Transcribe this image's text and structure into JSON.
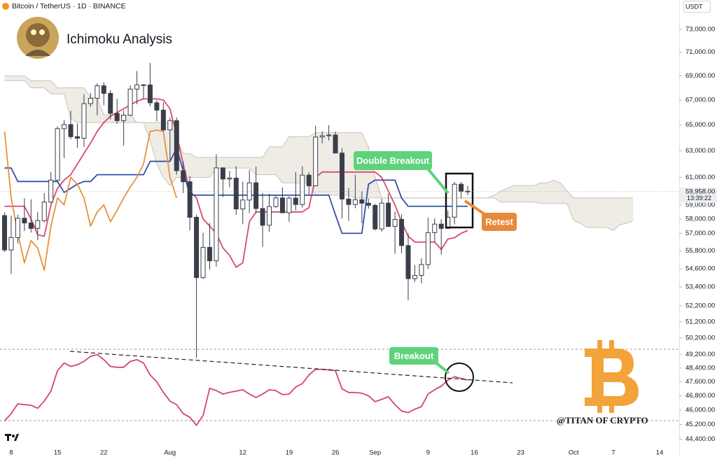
{
  "chart_data": {
    "type": "candlestick",
    "title": "Ichimoku Analysis",
    "symbol": "Bitcoin / TetherUS · 1D · BINANCE",
    "currency": "USDT",
    "watermark": "@TITAN OF CRYPTO",
    "log": true,
    "ylim": [
      44010,
      75650
    ],
    "yticks": [
      {
        "value": 73000,
        "label": "73,000.00"
      },
      {
        "value": 71000,
        "label": "71,000.00"
      },
      {
        "value": 69000,
        "label": "69,000.00"
      },
      {
        "value": 67000,
        "label": "67,000.00"
      },
      {
        "value": 65000,
        "label": "65,000.00"
      },
      {
        "value": 63000,
        "label": "63,000.00"
      },
      {
        "value": 61000,
        "label": "61,000.00"
      },
      {
        "value": 59000,
        "label": "59,000.00"
      },
      {
        "value": 58000,
        "label": "58,000.00"
      },
      {
        "value": 57000,
        "label": "57,000.00"
      },
      {
        "value": 55800,
        "label": "55,800.00"
      },
      {
        "value": 54600,
        "label": "54,600.00"
      },
      {
        "value": 53400,
        "label": "53,400.00"
      },
      {
        "value": 52200,
        "label": "52,200.00"
      },
      {
        "value": 51200,
        "label": "51,200.00"
      },
      {
        "value": 50200,
        "label": "50,200.00"
      },
      {
        "value": 49200,
        "label": "49,200.00"
      },
      {
        "value": 48400,
        "label": "48,400.00"
      },
      {
        "value": 47600,
        "label": "47,600.00"
      },
      {
        "value": 46800,
        "label": "46,800.00"
      },
      {
        "value": 46000,
        "label": "46,000.00"
      },
      {
        "value": 45200,
        "label": "45,200.00"
      },
      {
        "value": 44400,
        "label": "44,400.00"
      }
    ],
    "last_price": {
      "value": 59958,
      "label": "59,958.00"
    },
    "countdown": "13:39:22",
    "up_color": "#ffffff",
    "down_color": "#3a3e4a",
    "categories": [
      null,
      "8",
      null,
      null,
      null,
      null,
      null,
      null,
      "15",
      null,
      null,
      null,
      null,
      null,
      null,
      "22",
      null,
      null,
      null,
      null,
      null,
      null,
      null,
      null,
      null,
      "Aug",
      null,
      null,
      null,
      null,
      null,
      null,
      null,
      null,
      null,
      null,
      "12",
      null,
      null,
      null,
      null,
      null,
      null,
      "19",
      null,
      null,
      null,
      null,
      null,
      null,
      "26",
      null,
      null,
      null,
      null,
      null,
      "Sep",
      null,
      null,
      null,
      null,
      null,
      null,
      null,
      "9",
      null,
      null,
      null,
      null,
      null,
      null,
      "16",
      null,
      null,
      null,
      null,
      null,
      null,
      "23",
      null,
      null,
      null,
      null,
      null,
      null,
      null,
      "Oct",
      null,
      null,
      null,
      null,
      null,
      "7",
      null,
      null,
      null,
      null,
      null,
      null,
      "14",
      null,
      null
    ],
    "open": [
      58240,
      55860,
      56710,
      58050,
      57720,
      57340,
      57890,
      59200,
      60800,
      64720,
      65040,
      64090,
      63970,
      66710,
      67150,
      68170,
      67550,
      65930,
      65350,
      65780,
      67900,
      68250,
      68240,
      66780,
      66190,
      64620,
      65350,
      61500,
      60680,
      58120,
      54020,
      56040,
      55130,
      61710,
      60880,
      60950,
      58710,
      59350,
      60600,
      58740,
      57560,
      58880,
      59500,
      58440,
      59490,
      59030,
      61170,
      60380,
      64060,
      64160,
      64220,
      62830,
      59420,
      59030,
      59370,
      59120,
      58970,
      57300,
      59130,
      57480,
      57970,
      56160,
      53950,
      54160,
      54880,
      57050,
      57640,
      57340,
      58130,
      60500,
      59990,
      null,
      null,
      null,
      null,
      null,
      null,
      null,
      null,
      null,
      null,
      null,
      null,
      null,
      null,
      null,
      null,
      null,
      null,
      null,
      null,
      null,
      null,
      null,
      null,
      null,
      null,
      null,
      null,
      null,
      null,
      null
    ],
    "high": [
      58450,
      58240,
      58300,
      59470,
      59400,
      58500,
      59850,
      61420,
      64900,
      65390,
      66130,
      65120,
      67490,
      67600,
      68380,
      68480,
      67810,
      67100,
      66160,
      68200,
      69400,
      68320,
      70080,
      66990,
      66810,
      65600,
      65600,
      62200,
      61100,
      58300,
      57040,
      57720,
      62740,
      61750,
      61470,
      61850,
      60700,
      61570,
      61800,
      59850,
      59800,
      59700,
      60260,
      59620,
      61400,
      61820,
      61400,
      64950,
      64520,
      65000,
      64480,
      63200,
      60230,
      61190,
      59990,
      59440,
      59070,
      59440,
      59810,
      58520,
      58330,
      56990,
      54850,
      55300,
      58090,
      58040,
      57990,
      58600,
      60670,
      60660,
      60380,
      null,
      null,
      null,
      null,
      null,
      null,
      null,
      null,
      null,
      null,
      null,
      null,
      null,
      null,
      null,
      null,
      null,
      null,
      null,
      null,
      null,
      null,
      null,
      null,
      null,
      null,
      null,
      null,
      null,
      null,
      null
    ],
    "low": [
      55720,
      54260,
      56300,
      57160,
      57050,
      56530,
      57760,
      59130,
      60650,
      62450,
      63900,
      63230,
      63300,
      66440,
      65790,
      66570,
      65440,
      65100,
      63400,
      65730,
      66660,
      67070,
      66500,
      65300,
      64500,
      62300,
      61200,
      59850,
      57200,
      49000,
      53940,
      54550,
      54740,
      59560,
      60280,
      58300,
      57640,
      58420,
      58420,
      56080,
      57100,
      58790,
      58400,
      57800,
      58600,
      58800,
      59700,
      60350,
      63580,
      63800,
      62800,
      58030,
      57860,
      58760,
      57700,
      58730,
      57200,
      57120,
      57420,
      55600,
      55650,
      52550,
      53740,
      53650,
      54590,
      56400,
      55550,
      57330,
      57630,
      59460,
      59700,
      null,
      null,
      null,
      null,
      null,
      null,
      null,
      null,
      null,
      null,
      null,
      null,
      null,
      null,
      null,
      null,
      null,
      null,
      null,
      null,
      null,
      null,
      null,
      null,
      null,
      null,
      null,
      null,
      null,
      null,
      null
    ],
    "close": [
      55860,
      56710,
      58050,
      57720,
      57340,
      57890,
      59200,
      60800,
      64720,
      65040,
      64090,
      63970,
      66710,
      67150,
      68170,
      67550,
      65930,
      65350,
      65780,
      67900,
      68250,
      68240,
      66780,
      66190,
      64620,
      65350,
      61500,
      60680,
      58120,
      54020,
      56040,
      55130,
      61710,
      60880,
      60950,
      58710,
      59350,
      60600,
      58740,
      57560,
      58880,
      59500,
      58440,
      59490,
      59030,
      61170,
      60380,
      64060,
      64160,
      64220,
      62830,
      59420,
      59030,
      59370,
      59120,
      58970,
      57300,
      59130,
      57480,
      57970,
      56160,
      53950,
      54160,
      54880,
      57050,
      57640,
      57340,
      58130,
      60500,
      59990,
      59958,
      null,
      null,
      null,
      null,
      null,
      null,
      null,
      null,
      null,
      null,
      null,
      null,
      null,
      null,
      null,
      null,
      null,
      null,
      null,
      null,
      null,
      null,
      null,
      null,
      null,
      null,
      null,
      null,
      null,
      null,
      null
    ],
    "cloud": {
      "color": "#e9e5dd",
      "upper": [
        69000,
        69000,
        69000,
        69000,
        68600,
        68600,
        68600,
        68600,
        68000,
        68000,
        68000,
        68000,
        68000,
        67200,
        67200,
        65800,
        65800,
        65800,
        65800,
        65800,
        65200,
        65200,
        65200,
        65200,
        65200,
        65200,
        64000,
        62800,
        62800,
        62500,
        62500,
        62500,
        62500,
        62500,
        62500,
        62500,
        62500,
        62500,
        62500,
        62500,
        63300,
        63300,
        63300,
        64100,
        64100,
        64100,
        64100,
        64400,
        64400,
        64400,
        64400,
        64400,
        64400,
        64400,
        64400,
        63300,
        61000,
        59500,
        59500,
        59500,
        59500,
        59500,
        59500,
        59500,
        59500,
        59500,
        59500,
        59500,
        59500,
        59500,
        59500,
        59500,
        59500,
        59500,
        59700,
        60000,
        60200,
        60400,
        60400,
        60400,
        60400,
        60600,
        60600,
        60800,
        60600,
        60000,
        59500,
        59500,
        59500,
        59500,
        59500,
        59500,
        59500,
        59500,
        59500,
        59500,
        null,
        null,
        null,
        null,
        null,
        null
      ],
      "lower": [
        68600,
        68600,
        68600,
        68600,
        68000,
        68000,
        68000,
        67500,
        67500,
        67500,
        65500,
        65200,
        65200,
        65200,
        65200,
        65200,
        65200,
        65200,
        65200,
        65200,
        65200,
        65200,
        63800,
        62000,
        61000,
        60400,
        61000,
        61000,
        61000,
        61000,
        61000,
        61000,
        61700,
        61700,
        61700,
        61700,
        61700,
        61700,
        61200,
        61200,
        61200,
        61200,
        60600,
        60600,
        60600,
        60600,
        60600,
        59700,
        59700,
        59700,
        59700,
        59700,
        59700,
        59500,
        59500,
        59500,
        59500,
        59500,
        59500,
        59500,
        59500,
        59500,
        59500,
        59500,
        59500,
        59500,
        59500,
        59500,
        59500,
        59500,
        59500,
        59500,
        59500,
        59500,
        59500,
        59200,
        59200,
        59200,
        59200,
        59200,
        59200,
        59100,
        59100,
        59100,
        59100,
        59100,
        57900,
        57700,
        57400,
        57400,
        57400,
        57400,
        57200,
        57600,
        57700,
        57900,
        null,
        null,
        null,
        null,
        null,
        null
      ]
    },
    "overlays": [
      {
        "color": "#d84a72",
        "values": [
          58900,
          58900,
          58900,
          58900,
          58000,
          56900,
          56800,
          59000,
          60200,
          60800,
          61200,
          62000,
          62800,
          63600,
          64500,
          65200,
          65700,
          66000,
          66300,
          66600,
          66900,
          67100,
          67100,
          67100,
          67000,
          66300,
          64200,
          62000,
          60000,
          59500,
          58000,
          57500,
          57000,
          56000,
          55500,
          54700,
          55000,
          57800,
          58500,
          58500,
          58500,
          58500,
          58500,
          58500,
          58500,
          58500,
          58800,
          61000,
          61400,
          61400,
          61400,
          61400,
          61400,
          61400,
          61400,
          61400,
          61400,
          61000,
          60000,
          59000,
          57800,
          56800,
          56400,
          56400,
          56400,
          56400,
          55900,
          56600,
          56700,
          57000,
          57200,
          null,
          null,
          null,
          null,
          null,
          null,
          null,
          null,
          null,
          null,
          null,
          null,
          null,
          null,
          null,
          null,
          null,
          null,
          null,
          null,
          null,
          null,
          null,
          null,
          null,
          null,
          null,
          null,
          null,
          null,
          null
        ]
      },
      {
        "color": "#3450a8",
        "values": [
          61700,
          61700,
          60700,
          60700,
          60700,
          60700,
          60700,
          60700,
          60700,
          59900,
          60200,
          60500,
          60700,
          60700,
          61200,
          61200,
          61200,
          61200,
          61200,
          61200,
          61200,
          61200,
          62200,
          62200,
          62200,
          62200,
          63200,
          61500,
          59700,
          59700,
          59700,
          59700,
          59700,
          59700,
          59700,
          59700,
          59700,
          59700,
          59700,
          59700,
          59700,
          59700,
          59700,
          59700,
          59700,
          59700,
          59700,
          59700,
          59700,
          59700,
          58300,
          57000,
          57000,
          57000,
          57000,
          60500,
          60800,
          60800,
          60800,
          60800,
          59500,
          58900,
          58900,
          58900,
          58900,
          58900,
          58900,
          58900,
          58900,
          58900,
          58900,
          null,
          null,
          null,
          null,
          null,
          null,
          null,
          null,
          null,
          null,
          null,
          null,
          null,
          null,
          null,
          null,
          null,
          null,
          null,
          null,
          null,
          null,
          null,
          null,
          null,
          null,
          null,
          null,
          null,
          null,
          null
        ]
      },
      {
        "color": "#e8913a",
        "values": [
          64500,
          59500,
          57000,
          55000,
          56500,
          56000,
          54500,
          57500,
          59500,
          59000,
          61000,
          60500,
          59500,
          57500,
          58500,
          59000,
          57800,
          58600,
          59500,
          60300,
          61000,
          62000,
          64500,
          64600,
          64500,
          61000,
          59500,
          null,
          null,
          null,
          null,
          null,
          null,
          null,
          null,
          null,
          null,
          null,
          null,
          null,
          null,
          null,
          null,
          null,
          null,
          null,
          null,
          null,
          null,
          null,
          null,
          null,
          null,
          null,
          null,
          null,
          null,
          null,
          null,
          null,
          null,
          null,
          null,
          null,
          null,
          null,
          null,
          null,
          null,
          null,
          null,
          null,
          null,
          null,
          null,
          null,
          null,
          null,
          null,
          null,
          null,
          null,
          null,
          null,
          null,
          null,
          null,
          null,
          null,
          null,
          null,
          null,
          null,
          null,
          null,
          null,
          null,
          null,
          null,
          null,
          null,
          null
        ]
      },
      {
        "color": "#d4456f",
        "values": [
          45400,
          45800,
          46350,
          46300,
          46270,
          46100,
          46500,
          47070,
          48250,
          48700,
          48500,
          48600,
          48800,
          49100,
          49200,
          48900,
          48500,
          48450,
          48450,
          48800,
          48900,
          48700,
          48000,
          47600,
          47000,
          46500,
          46300,
          45800,
          45600,
          45160,
          45700,
          47230,
          47100,
          46900,
          47000,
          47070,
          47150,
          46900,
          46700,
          46900,
          47150,
          47100,
          46870,
          46900,
          47300,
          47500,
          48000,
          48330,
          48330,
          48300,
          48250,
          47200,
          46990,
          46990,
          46950,
          46800,
          46470,
          46600,
          46750,
          46300,
          45950,
          45850,
          46050,
          46190,
          46900,
          47150,
          47350,
          47700,
          47900,
          47800,
          47700,
          null,
          null,
          null,
          null,
          null,
          null,
          null,
          null,
          null,
          null,
          null,
          null,
          null,
          null,
          null,
          null,
          null,
          null,
          null,
          null,
          null,
          null,
          null,
          null,
          null,
          null,
          null,
          null,
          null,
          null,
          null
        ]
      }
    ],
    "annotations": [
      {
        "text": "Double Breakout",
        "color": "#5ed37b"
      },
      {
        "text": "Retest",
        "color": "#e8893a"
      },
      {
        "text": "Breakout",
        "color": "#5ed37b"
      }
    ]
  }
}
